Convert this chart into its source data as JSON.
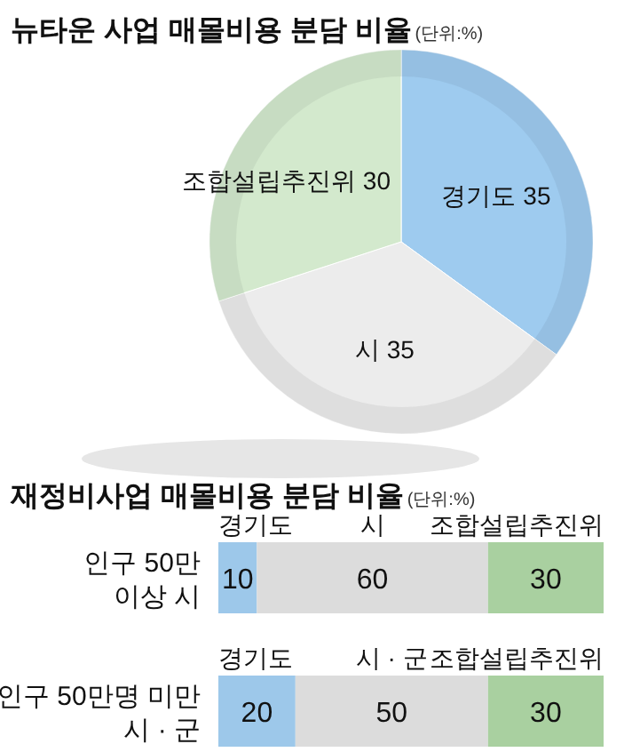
{
  "chart_data": [
    {
      "type": "pie",
      "title": "뉴타운 사업 매몰비용 분담 비율",
      "subtitle": "(단위:%)",
      "categories": [
        "경기도",
        "시",
        "조합설립추진위"
      ],
      "values": [
        35,
        35,
        30
      ],
      "colors": [
        "#9ecbef",
        "#ececec",
        "#d3e9cd"
      ],
      "data_labels": true
    },
    {
      "type": "bar",
      "orientation": "horizontal",
      "stacked": true,
      "title": "재정비사업 매몰비용 분담 비율",
      "subtitle": "(단위:%)",
      "categories": [
        "인구 50만\n이상 시",
        "인구 50만명 미만\n시 · 군"
      ],
      "xlim": [
        0,
        100
      ],
      "tick_labels": "y",
      "data_labels": true,
      "series": [
        {
          "name": "경기도",
          "color": "#9dc8ea",
          "values": [
            10,
            20
          ]
        },
        {
          "color": "#dcdcdc",
          "values": [
            60,
            50
          ]
        },
        {
          "name": "조합설립추진위",
          "color": "#a9d0a0",
          "values": [
            30,
            30
          ]
        }
      ],
      "annotations": [
        "시",
        "시 · 군"
      ]
    }
  ]
}
